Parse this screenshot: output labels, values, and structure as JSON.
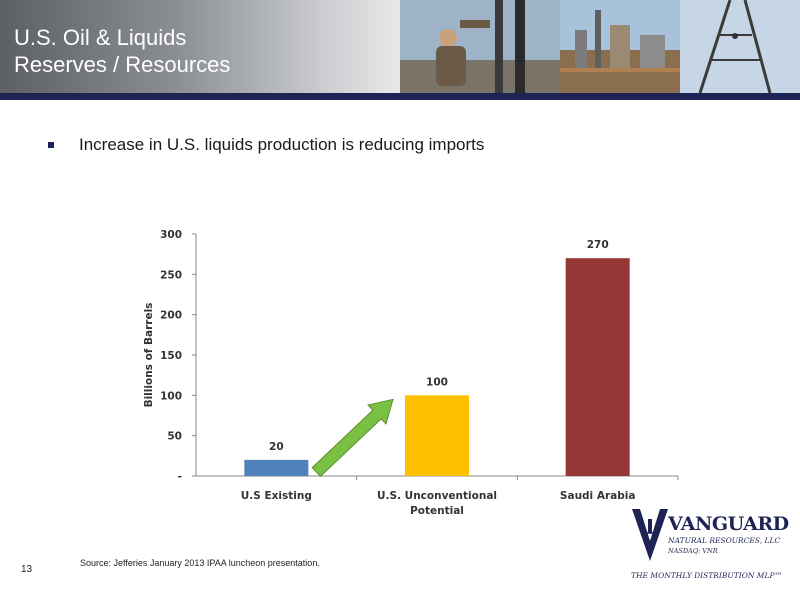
{
  "slide": {
    "title_line1": "U.S. Oil & Liquids",
    "title_line2": "Reserves / Resources",
    "bullet": "Increase in U.S. liquids production is reducing imports",
    "page_number": "13",
    "source": "Source:  Jefferies January 2013 IPAA luncheon presentation."
  },
  "logo": {
    "name": "VANGUARD",
    "subtitle": "NATURAL RESOURCES, LLC",
    "ticker": "NASDAQ: VNR",
    "tagline": "THE MONTHLY DISTRIBUTION MLP™"
  },
  "colors": {
    "header_band": "#1e2355",
    "bar_existing": "#4f81bd",
    "bar_unconventional": "#ffc000",
    "bar_saudi": "#953735",
    "arrow": "#7ac143"
  },
  "chart_data": {
    "type": "bar",
    "categories": [
      "U.S Existing",
      "U.S. Unconventional Potential",
      "Saudi Arabia"
    ],
    "category_lines": [
      [
        "U.S Existing"
      ],
      [
        "U.S. Unconventional",
        "Potential"
      ],
      [
        "Saudi Arabia"
      ]
    ],
    "values": [
      20,
      100,
      270
    ],
    "data_labels": [
      "20",
      "100",
      "270"
    ],
    "bar_colors": [
      "#4f81bd",
      "#ffc000",
      "#953735"
    ],
    "ylabel": "Billions of Barrels",
    "ylim": [
      0,
      300
    ],
    "yticks": [
      0,
      50,
      100,
      150,
      200,
      250,
      300
    ],
    "ytick_labels": [
      "-",
      "50",
      "100",
      "150",
      "200",
      "250",
      "300"
    ],
    "grid": false,
    "legend": "none",
    "annotation": "green arrow from U.S Existing toward U.S. Unconventional Potential"
  }
}
